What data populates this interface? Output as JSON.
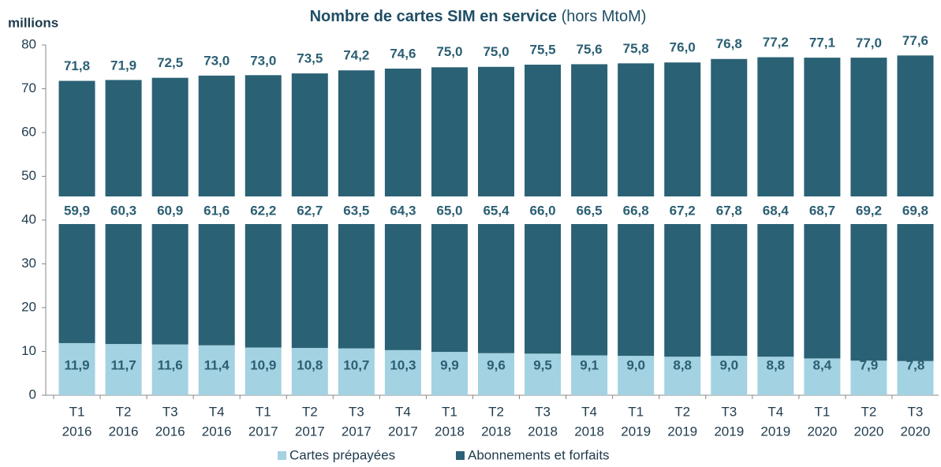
{
  "chart_data": {
    "type": "bar",
    "stacked": true,
    "title": "Nombre de cartes SIM en service",
    "subtitle": "(hors MtoM)",
    "y_label": "millions",
    "categories": [
      [
        "T1",
        "2016"
      ],
      [
        "T2",
        "2016"
      ],
      [
        "T3",
        "2016"
      ],
      [
        "T4",
        "2016"
      ],
      [
        "T1",
        "2017"
      ],
      [
        "T2",
        "2017"
      ],
      [
        "T3",
        "2017"
      ],
      [
        "T4",
        "2017"
      ],
      [
        "T1",
        "2018"
      ],
      [
        "T2",
        "2018"
      ],
      [
        "T3",
        "2018"
      ],
      [
        "T4",
        "2018"
      ],
      [
        "T1",
        "2019"
      ],
      [
        "T2",
        "2019"
      ],
      [
        "T3",
        "2019"
      ],
      [
        "T4",
        "2019"
      ],
      [
        "T1",
        "2020"
      ],
      [
        "T2",
        "2020"
      ],
      [
        "T3",
        "2020"
      ]
    ],
    "series": [
      {
        "name": "Cartes prépayées",
        "color": "#a3d2e2",
        "values": [
          11.9,
          11.7,
          11.6,
          11.4,
          10.9,
          10.8,
          10.7,
          10.3,
          9.9,
          9.6,
          9.5,
          9.1,
          9.0,
          8.8,
          9.0,
          8.8,
          8.4,
          7.9,
          7.8
        ],
        "value_labels": [
          "11,9",
          "11,7",
          "11,6",
          "11,4",
          "10,9",
          "10,8",
          "10,7",
          "10,3",
          "9,9",
          "9,6",
          "9,5",
          "9,1",
          "9,0",
          "8,8",
          "9,0",
          "8,8",
          "8,4",
          "7,9",
          "7,8"
        ]
      },
      {
        "name": "Abonnements et forfaits",
        "color": "#2a6174",
        "values": [
          59.9,
          60.3,
          60.9,
          61.6,
          62.2,
          62.7,
          63.5,
          64.3,
          65.0,
          65.4,
          66.0,
          66.5,
          66.8,
          67.2,
          67.8,
          68.4,
          68.7,
          69.2,
          69.8
        ],
        "value_labels": [
          "59,9",
          "60,3",
          "60,9",
          "61,6",
          "62,2",
          "62,7",
          "63,5",
          "64,3",
          "65,0",
          "65,4",
          "66,0",
          "66,5",
          "66,8",
          "67,2",
          "67,8",
          "68,4",
          "68,7",
          "69,2",
          "69,8"
        ]
      }
    ],
    "totals": {
      "values": [
        71.8,
        71.9,
        72.5,
        73.0,
        73.0,
        73.5,
        74.2,
        74.6,
        75.0,
        75.0,
        75.5,
        75.6,
        75.8,
        76.0,
        76.8,
        77.2,
        77.1,
        77.0,
        77.6
      ],
      "value_labels": [
        "71,8",
        "71,9",
        "72,5",
        "73,0",
        "73,0",
        "73,5",
        "74,2",
        "74,6",
        "75,0",
        "75,0",
        "75,5",
        "75,6",
        "75,8",
        "76,0",
        "76,8",
        "77,2",
        "77,1",
        "77,0",
        "77,6"
      ]
    },
    "ylim": [
      0,
      80
    ],
    "yticks": [
      0,
      10,
      20,
      30,
      40,
      50,
      60,
      70,
      80
    ],
    "grid": false,
    "legend": "bottom"
  }
}
